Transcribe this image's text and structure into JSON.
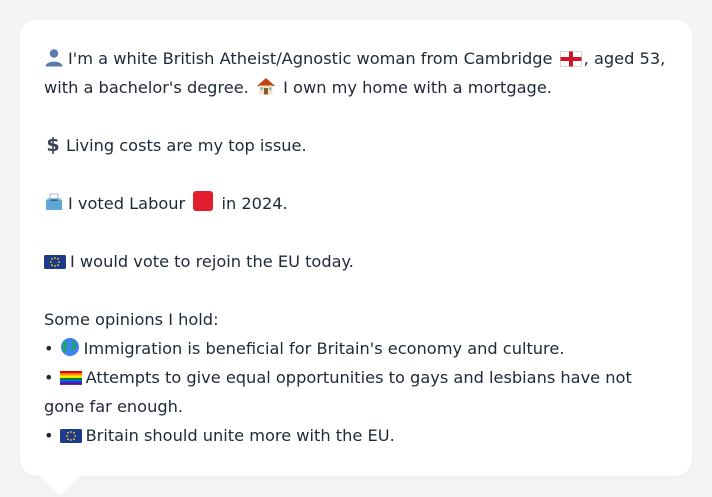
{
  "profile": {
    "line1_a": "I'm a white British Atheist/Agnostic woman from Cambridge",
    "line1_b": ", aged 53,",
    "line2_a": "with a bachelor's degree.",
    "line2_b": "I own my home with a mortgage."
  },
  "issue": {
    "text": "Living costs are my top issue."
  },
  "vote": {
    "text_a": "I voted Labour",
    "text_b": "in 2024."
  },
  "eu": {
    "text": "I would vote to rejoin the EU today."
  },
  "opinions": {
    "heading": "Some opinions I hold:",
    "bullet": "•",
    "items": [
      {
        "text": "Immigration is beneficial for Britain's economy and culture."
      },
      {
        "text": "Attempts to give equal opportunities to gays and lesbians have not"
      },
      {
        "text": "gone far enough."
      },
      {
        "text": "Britain should unite more with the EU."
      }
    ]
  },
  "icons": {
    "person": "person-icon",
    "england_flag": "england-flag-icon",
    "house": "house-icon",
    "dollar": "dollar-icon",
    "ballot": "ballot-box-icon",
    "labour_square": "red-square-icon",
    "eu_flag": "eu-flag-icon",
    "globe": "globe-icon",
    "rainbow_flag": "rainbow-flag-icon"
  },
  "colors": {
    "background": "#f3f4f6",
    "card": "#ffffff",
    "text": "#1f2937",
    "labour_red": "#e11d2e",
    "eu_blue": "#1e3a8a"
  }
}
